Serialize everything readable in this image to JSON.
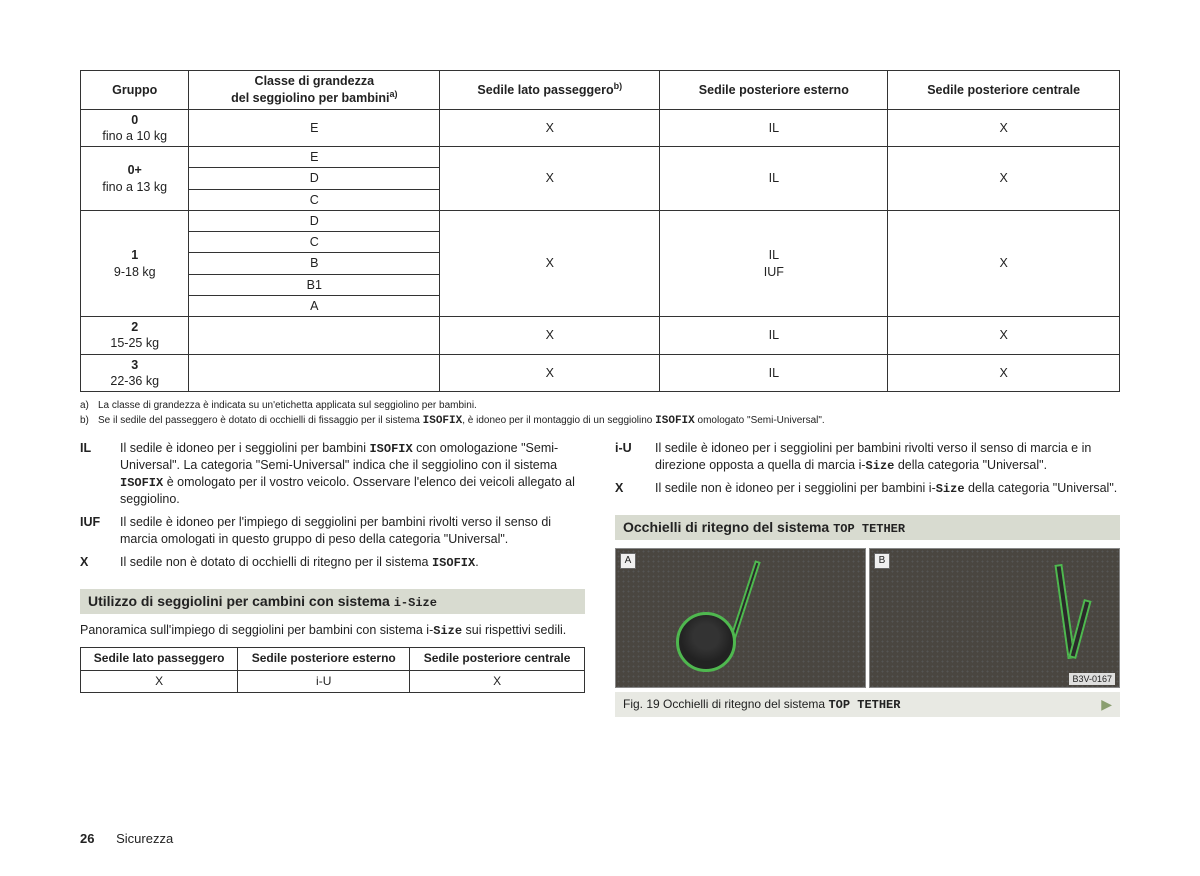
{
  "table1": {
    "headers": {
      "gruppo": "Gruppo",
      "classe": "Classe di grandezza\ndel seggiolino per bambini",
      "classe_sup": "a)",
      "lato": "Sedile lato passeggero",
      "lato_sup": "b)",
      "esterno": "Sedile posteriore esterno",
      "centrale": "Sedile posteriore centrale"
    },
    "groups": [
      {
        "name": "0",
        "sub": "fino a 10 kg",
        "classes": [
          "E"
        ],
        "lato": "X",
        "ext": "IL",
        "centr": "X"
      },
      {
        "name": "0+",
        "sub": "fino a 13 kg",
        "classes": [
          "E",
          "D",
          "C"
        ],
        "lato": "X",
        "ext": "IL",
        "centr": "X"
      },
      {
        "name": "1",
        "sub": "9-18 kg",
        "classes": [
          "D",
          "C",
          "B",
          "B1",
          "A"
        ],
        "lato": "X",
        "ext": "IL\nIUF",
        "centr": "X"
      },
      {
        "name": "2",
        "sub": "15-25 kg",
        "classes": [
          ""
        ],
        "lato": "X",
        "ext": "IL",
        "centr": "X"
      },
      {
        "name": "3",
        "sub": "22-36 kg",
        "classes": [
          ""
        ],
        "lato": "X",
        "ext": "IL",
        "centr": "X"
      }
    ]
  },
  "footnotes": {
    "a": {
      "mark": "a)",
      "text": "La classe di grandezza è indicata su un'etichetta applicata sul seggiolino per bambini."
    },
    "b": {
      "mark": "b)",
      "text_pre": "Se il sedile del passeggero è dotato di occhielli di fissaggio per il sistema ",
      "brand1": "ISOFIX",
      "text_mid": ", è idoneo per il montaggio di un seggiolino ",
      "brand2": "ISOFIX",
      "text_post": " omologato \"Semi-Universal\"."
    }
  },
  "definitions_left": [
    {
      "k": "IL",
      "pre": "Il sedile è idoneo per i seggiolini per bambini ",
      "brand": "ISOFIX",
      "mid": " con omologazione \"Semi-Universal\". La categoria \"Semi-Universal\" indica che il seggiolino con il sistema ",
      "brand2": "ISOFIX",
      "post": " è omologato per il vostro veicolo. Osservare l'elenco dei veicoli allegato al seggiolino."
    },
    {
      "k": "IUF",
      "text": "Il sedile è idoneo per l'impiego di seggiolini per bambini rivolti verso il senso di marcia omologati in questo gruppo di peso della categoria \"Universal\"."
    },
    {
      "k": "X",
      "pre": "Il sedile non è dotato di occhielli di ritegno per il sistema ",
      "brand": "ISOFIX",
      "post": "."
    }
  ],
  "definitions_right": [
    {
      "k": "i-U",
      "pre": "Il sedile è idoneo per i seggiolini per bambini rivolti verso il senso di marcia e in direzione opposta a quella di marcia i-",
      "brand": "Size",
      "post": " della categoria \"Universal\"."
    },
    {
      "k": "X",
      "pre": "Il sedile non è idoneo per i seggiolini per bambini i-",
      "brand": "Size",
      "post": " della categoria \"Universal\"."
    }
  ],
  "section1": {
    "title_pre": "Utilizzo di seggiolini per cambini con sistema ",
    "title_brand": "i-Size"
  },
  "section1_para": {
    "pre": "Panoramica sull'impiego di seggiolini per bambini con sistema i-",
    "brand": "Size",
    "post": " sui rispettivi sedili."
  },
  "table2": {
    "headers": [
      "Sedile lato passeggero",
      "Sedile posteriore esterno",
      "Sedile posteriore centrale"
    ],
    "row": [
      "X",
      "i-U",
      "X"
    ]
  },
  "section2": {
    "title_pre": "Occhielli di ritegno del sistema ",
    "title_brand": "TOP TETHER"
  },
  "images": {
    "a_label": "A",
    "b_label": "B",
    "code": "B3V-0167"
  },
  "fig_caption": {
    "pre": "Fig. 19  Occhielli di ritegno del sistema ",
    "brand": "TOP TETHER"
  },
  "footer": {
    "page": "26",
    "section": "Sicurezza"
  }
}
